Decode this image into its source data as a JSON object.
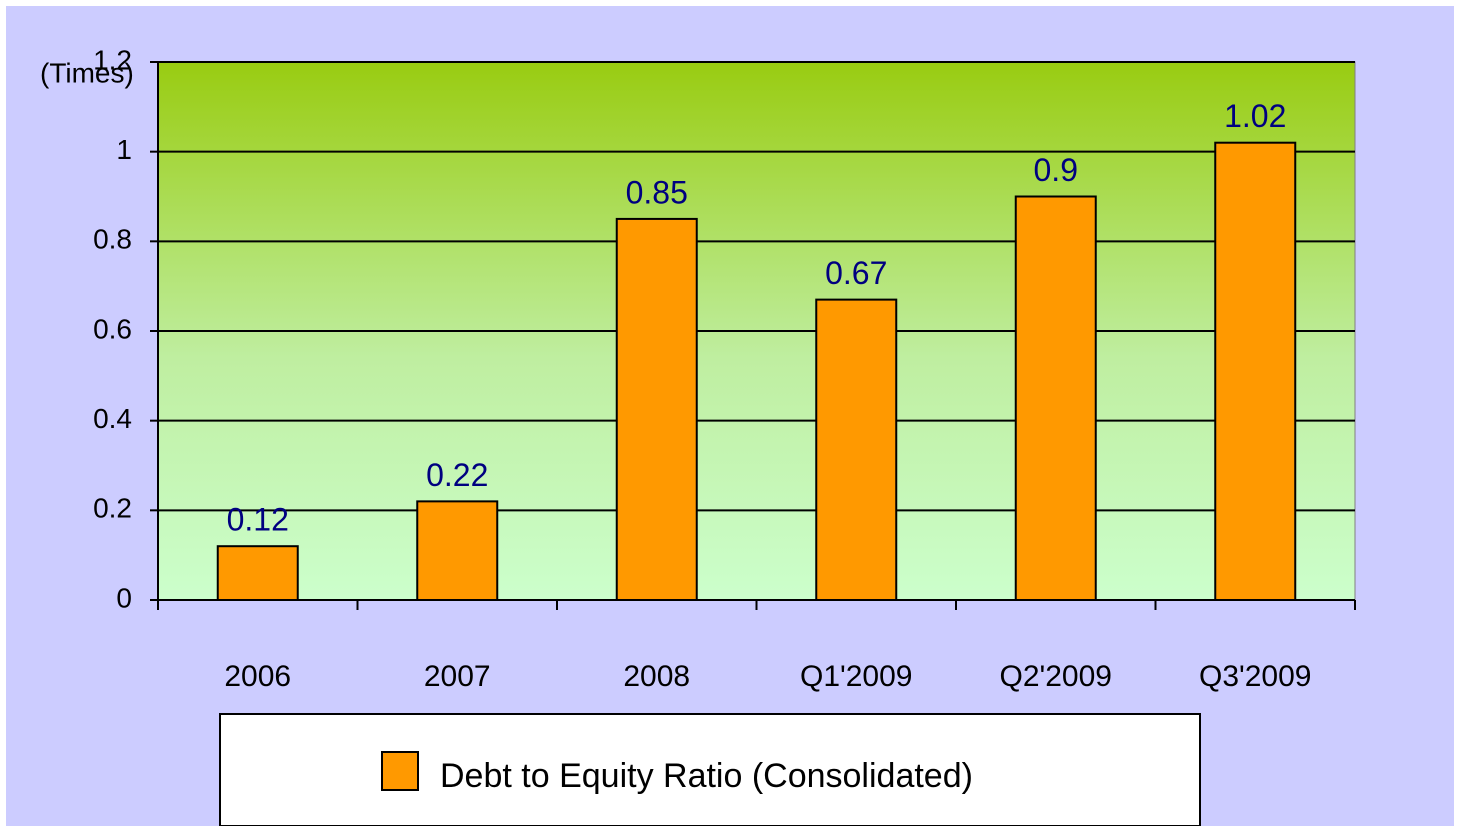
{
  "chart_data": {
    "type": "bar",
    "y_label": "(Times)",
    "categories": [
      "2006",
      "2007",
      "2008",
      "Q1'2009",
      "Q2'2009",
      "Q3'2009"
    ],
    "values": [
      0.12,
      0.22,
      0.85,
      0.67,
      0.9,
      1.02
    ],
    "color": "#ff9900",
    "legend": "Debt to Equity Ratio (Consolidated)",
    "ylim": [
      0,
      1.2
    ],
    "yticks": [
      0,
      0.2,
      0.4,
      0.6,
      0.8,
      1,
      1.2
    ],
    "grid": true
  }
}
